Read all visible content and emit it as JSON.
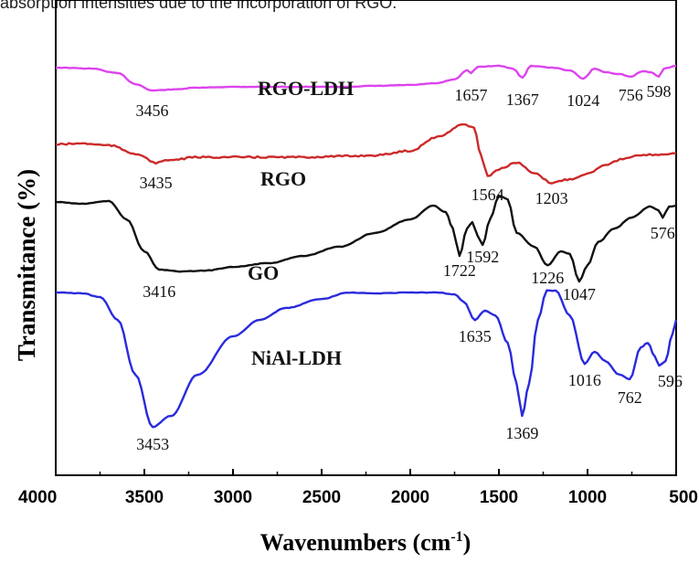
{
  "caption": "absorption intensities due to the incorporation of RGO.",
  "chart_data": {
    "type": "line",
    "xlabel": "Wavenumbers (cm",
    "xlabel_sup": "-1",
    "xlabel_end": ")",
    "ylabel": "Transmitance (%)",
    "xlim": [
      4000,
      500
    ],
    "x_ticks": [
      4000,
      3500,
      3000,
      2500,
      2000,
      1500,
      1000,
      500
    ],
    "y_ticks_shown": false,
    "series": [
      {
        "name": "RGO-LDH",
        "color": "#dd44ee",
        "y_units": "arbitrary transmittance (stacked)",
        "points": [
          [
            4000,
            74
          ],
          [
            3800,
            75
          ],
          [
            3650,
            80
          ],
          [
            3550,
            92
          ],
          [
            3456,
            99
          ],
          [
            3350,
            98
          ],
          [
            3200,
            96
          ],
          [
            3000,
            95
          ],
          [
            2800,
            95
          ],
          [
            2600,
            95
          ],
          [
            2400,
            95
          ],
          [
            2200,
            94
          ],
          [
            2000,
            93
          ],
          [
            1850,
            91
          ],
          [
            1750,
            87
          ],
          [
            1680,
            77
          ],
          [
            1657,
            80
          ],
          [
            1620,
            73
          ],
          [
            1500,
            72
          ],
          [
            1420,
            75
          ],
          [
            1367,
            85
          ],
          [
            1320,
            72
          ],
          [
            1200,
            74
          ],
          [
            1100,
            77
          ],
          [
            1024,
            86
          ],
          [
            960,
            75
          ],
          [
            900,
            79
          ],
          [
            820,
            81
          ],
          [
            756,
            84
          ],
          [
            690,
            78
          ],
          [
            640,
            79
          ],
          [
            598,
            84
          ],
          [
            570,
            75
          ],
          [
            500,
            72
          ]
        ],
        "peaks": [
          {
            "label": "3456",
            "x": 3456
          },
          {
            "label": "1657",
            "x": 1657
          },
          {
            "label": "1367",
            "x": 1367
          },
          {
            "label": "1024",
            "x": 1024
          },
          {
            "label": "756",
            "x": 756
          },
          {
            "label": "598",
            "x": 598
          }
        ]
      },
      {
        "name": "RGO",
        "color": "#cc2a2a",
        "y_units": "arbitrary transmittance (stacked)",
        "points": [
          [
            4000,
            158
          ],
          [
            3850,
            157
          ],
          [
            3700,
            159
          ],
          [
            3550,
            168
          ],
          [
            3435,
            178
          ],
          [
            3350,
            175
          ],
          [
            3200,
            172
          ],
          [
            3000,
            172
          ],
          [
            2800,
            172
          ],
          [
            2600,
            172
          ],
          [
            2400,
            171
          ],
          [
            2200,
            170
          ],
          [
            2000,
            165
          ],
          [
            1850,
            150
          ],
          [
            1700,
            136
          ],
          [
            1640,
            140
          ],
          [
            1600,
            170
          ],
          [
            1564,
            193
          ],
          [
            1500,
            185
          ],
          [
            1400,
            178
          ],
          [
            1300,
            190
          ],
          [
            1203,
            200
          ],
          [
            1100,
            196
          ],
          [
            1000,
            190
          ],
          [
            900,
            180
          ],
          [
            800,
            174
          ],
          [
            700,
            170
          ],
          [
            600,
            169
          ],
          [
            500,
            168
          ]
        ],
        "peaks": [
          {
            "label": "3435",
            "x": 3435
          },
          {
            "label": "1564",
            "x": 1564
          },
          {
            "label": "1203",
            "x": 1203
          }
        ]
      },
      {
        "name": "GO",
        "color": "#111111",
        "y_units": "arbitrary transmittance (stacked)",
        "points": [
          [
            4000,
            221
          ],
          [
            3850,
            223
          ],
          [
            3700,
            220
          ],
          [
            3600,
            240
          ],
          [
            3500,
            275
          ],
          [
            3416,
            295
          ],
          [
            3300,
            297
          ],
          [
            3150,
            296
          ],
          [
            3000,
            292
          ],
          [
            2800,
            288
          ],
          [
            2600,
            280
          ],
          [
            2400,
            270
          ],
          [
            2200,
            255
          ],
          [
            2000,
            240
          ],
          [
            1870,
            225
          ],
          [
            1800,
            232
          ],
          [
            1760,
            250
          ],
          [
            1722,
            280
          ],
          [
            1680,
            250
          ],
          [
            1650,
            243
          ],
          [
            1620,
            258
          ],
          [
            1592,
            268
          ],
          [
            1550,
            240
          ],
          [
            1500,
            214
          ],
          [
            1450,
            218
          ],
          [
            1400,
            255
          ],
          [
            1300,
            270
          ],
          [
            1226,
            290
          ],
          [
            1150,
            275
          ],
          [
            1100,
            278
          ],
          [
            1047,
            308
          ],
          [
            1000,
            290
          ],
          [
            940,
            265
          ],
          [
            850,
            250
          ],
          [
            750,
            238
          ],
          [
            650,
            226
          ],
          [
            600,
            230
          ],
          [
            576,
            238
          ],
          [
            540,
            226
          ],
          [
            500,
            225
          ]
        ],
        "peaks": [
          {
            "label": "3416",
            "x": 3416
          },
          {
            "label": "1722",
            "x": 1722
          },
          {
            "label": "1592",
            "x": 1592
          },
          {
            "label": "1226",
            "x": 1226
          },
          {
            "label": "1047",
            "x": 1047
          },
          {
            "label": "576",
            "x": 576
          }
        ]
      },
      {
        "name": "NiAl-LDH",
        "color": "#2a2add",
        "y_units": "arbitrary transmittance (stacked)",
        "points": [
          [
            4000,
            320
          ],
          [
            3850,
            321
          ],
          [
            3750,
            325
          ],
          [
            3650,
            350
          ],
          [
            3550,
            410
          ],
          [
            3453,
            467
          ],
          [
            3350,
            455
          ],
          [
            3200,
            410
          ],
          [
            3000,
            368
          ],
          [
            2850,
            350
          ],
          [
            2700,
            337
          ],
          [
            2500,
            327
          ],
          [
            2350,
            320
          ],
          [
            2200,
            321
          ],
          [
            2000,
            320
          ],
          [
            1850,
            320
          ],
          [
            1750,
            322
          ],
          [
            1700,
            330
          ],
          [
            1635,
            350
          ],
          [
            1580,
            340
          ],
          [
            1520,
            345
          ],
          [
            1450,
            375
          ],
          [
            1400,
            420
          ],
          [
            1369,
            455
          ],
          [
            1330,
            420
          ],
          [
            1280,
            350
          ],
          [
            1230,
            318
          ],
          [
            1180,
            318
          ],
          [
            1100,
            345
          ],
          [
            1016,
            398
          ],
          [
            960,
            385
          ],
          [
            900,
            395
          ],
          [
            820,
            410
          ],
          [
            762,
            415
          ],
          [
            700,
            380
          ],
          [
            660,
            375
          ],
          [
            620,
            390
          ],
          [
            596,
            400
          ],
          [
            560,
            395
          ],
          [
            520,
            365
          ],
          [
            500,
            350
          ]
        ],
        "peaks": [
          {
            "label": "3453",
            "x": 3453
          },
          {
            "label": "1635",
            "x": 1635
          },
          {
            "label": "1369",
            "x": 1369
          },
          {
            "label": "1016",
            "x": 1016
          },
          {
            "label": "762",
            "x": 762
          },
          {
            "label": "596",
            "x": 596
          }
        ]
      }
    ]
  }
}
